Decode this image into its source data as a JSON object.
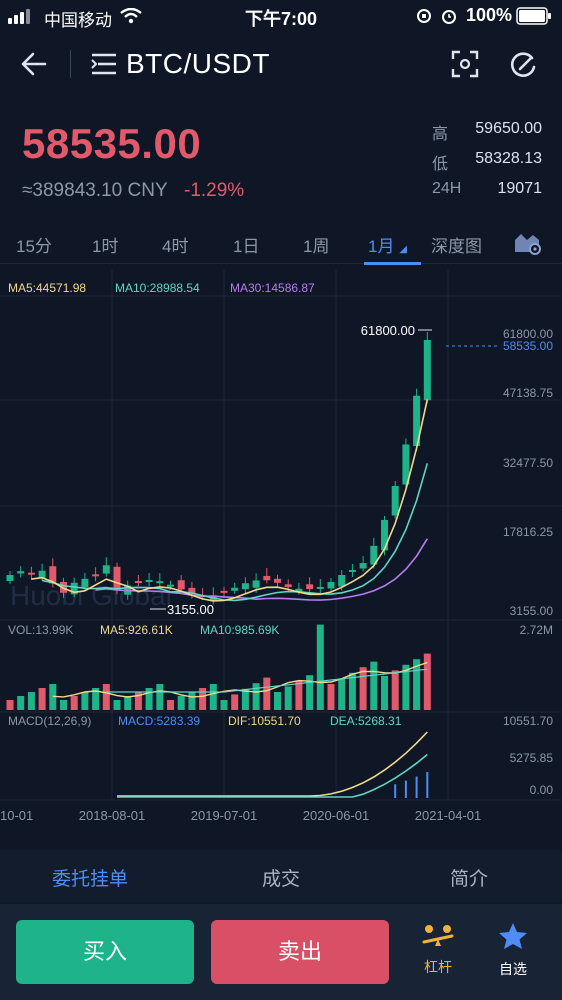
{
  "status_bar": {
    "carrier": "中国移动",
    "time": "下午7:00",
    "battery": "100%"
  },
  "header": {
    "pair": "BTC/USDT",
    "back_icon": "arrow-left-icon",
    "menu_icon": "list-icon",
    "fullscreen_icon": "fullscreen-icon",
    "share_icon": "refresh-icon"
  },
  "price": {
    "last": "58535.00",
    "cny": "≈389843.10 CNY",
    "change": "-1.29%",
    "color_down": "#e05a6c"
  },
  "stats": [
    {
      "label": "高",
      "value": "59650.00"
    },
    {
      "label": "低",
      "value": "58328.13"
    },
    {
      "label": "24H",
      "value": "19071"
    }
  ],
  "period_tabs": [
    "15分",
    "1时",
    "4时",
    "1日",
    "1周",
    "1月",
    "深度图"
  ],
  "active_period": "1月",
  "chart_data": {
    "type": "candlestick",
    "ma_legend": [
      "MA5:44571.98",
      "MA10:28988.54",
      "MA30:14586.87"
    ],
    "price_axis": [
      "61800.00",
      "47138.75",
      "32477.50",
      "17816.25",
      "3155.00"
    ],
    "current_price_label": "58535.00",
    "high_label": "61800.00",
    "low_label": "3155.00",
    "ylim": [
      3155,
      61800
    ],
    "watermark": "Huobi Global",
    "vol_legend": [
      "VOL:13.99K",
      "MA5:926.61K",
      "MA10:985.69K"
    ],
    "vol_axis": "2.72M",
    "macd_legend": [
      "MACD(12,26,9)",
      "MACD:5283.39",
      "DIF:10551.70",
      "DEA:5268.31"
    ],
    "macd_axis": [
      "10551.70",
      "5275.85",
      "0.00"
    ],
    "time_axis": [
      "10-01",
      "2018-08-01",
      "2019-07-01",
      "2020-06-01",
      "2021-04-01"
    ],
    "colors": {
      "up": "#1fb38a",
      "down": "#e05a6c",
      "ma5": "#f0d98a",
      "ma10": "#5fd6c4",
      "ma30": "#b77cf0",
      "dif": "#f0d98a",
      "dea": "#5fd6c4"
    }
  },
  "bottom_tabs": [
    "委托挂单",
    "成交",
    "简介"
  ],
  "actions": {
    "buy": "买入",
    "sell": "卖出",
    "leverage": "杠杆",
    "favorites": "自选"
  }
}
